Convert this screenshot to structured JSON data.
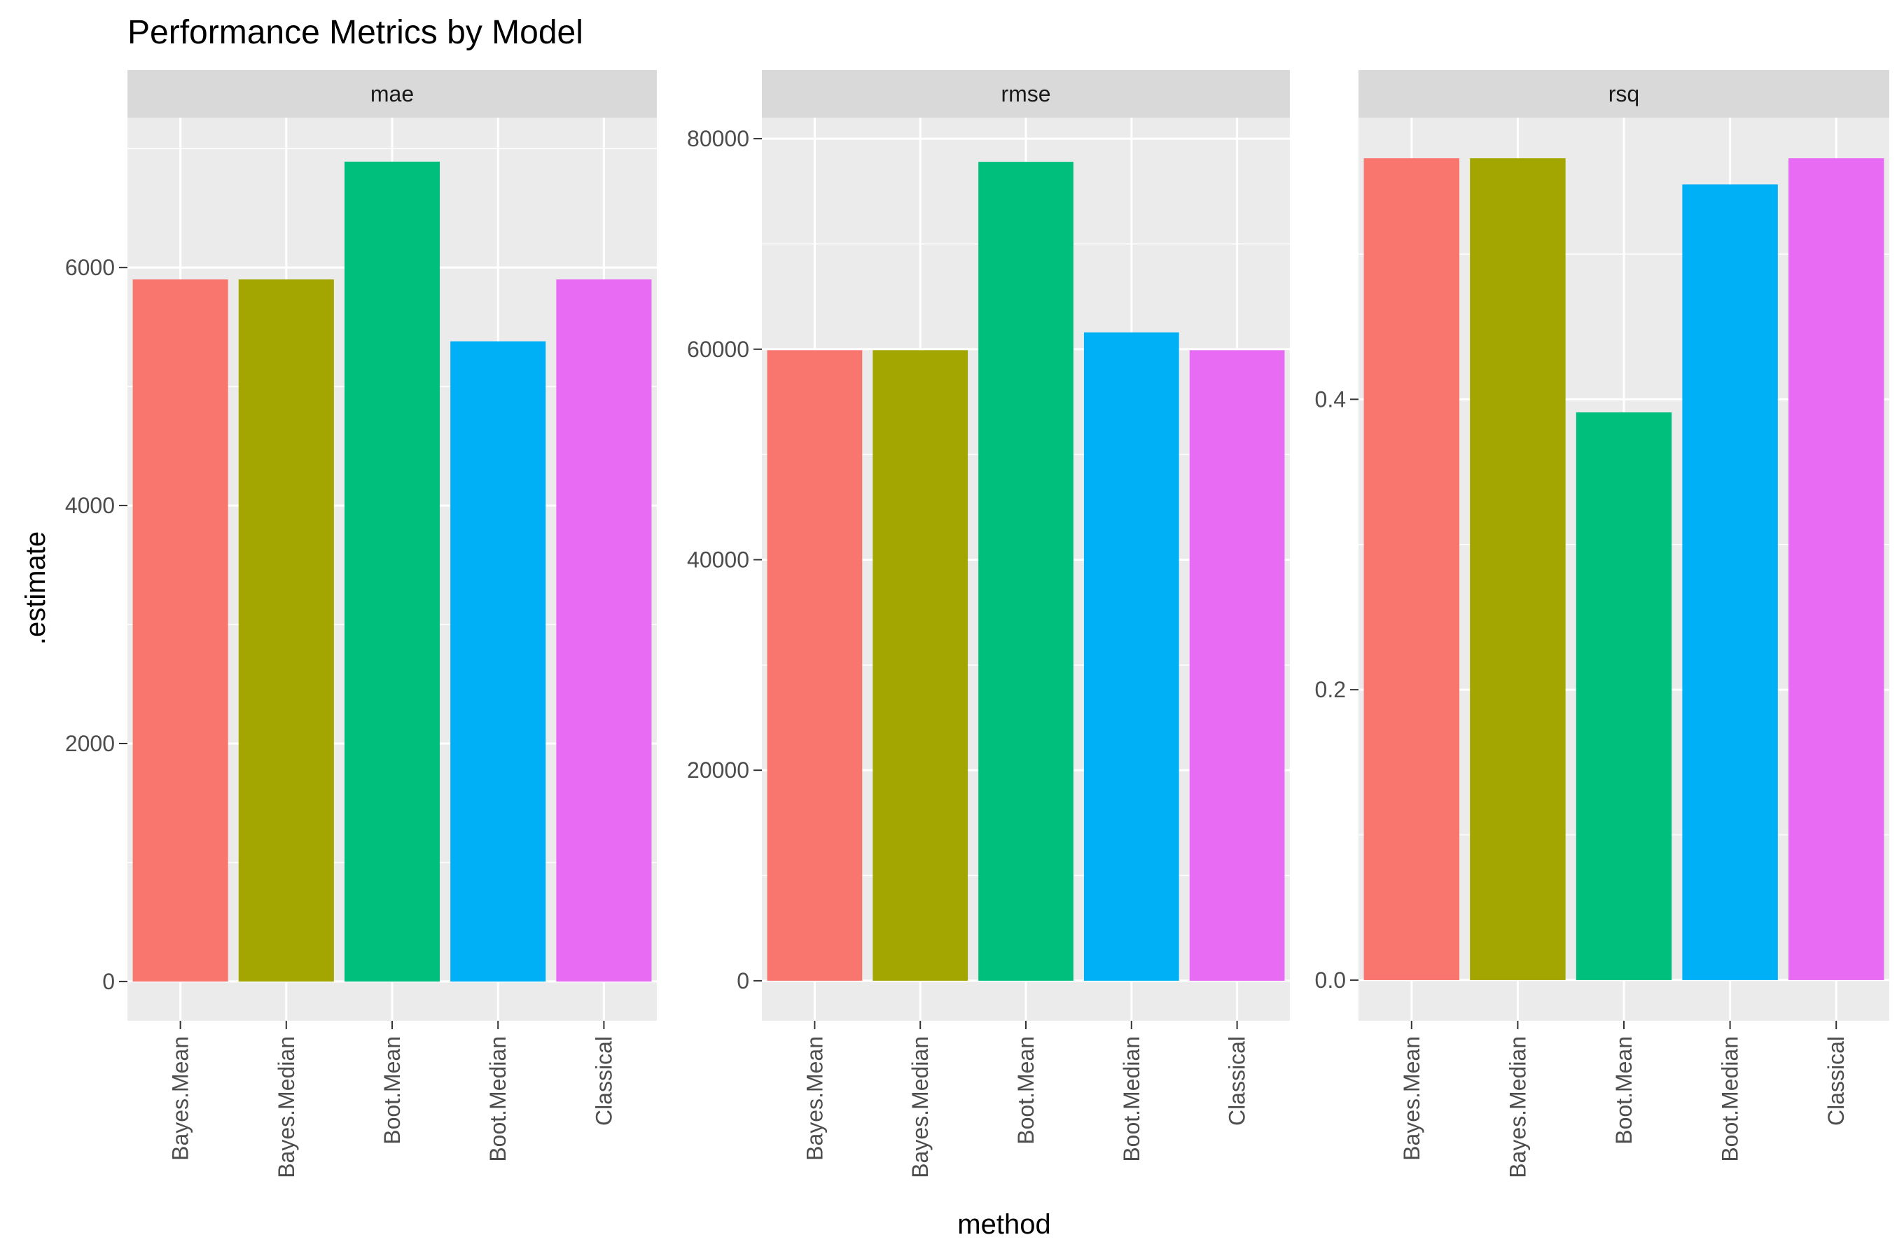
{
  "chart_data": {
    "type": "bar",
    "title": "Performance Metrics by Model",
    "xlabel": "method",
    "ylabel": ".estimate",
    "categories": [
      "Bayes.Mean",
      "Bayes.Median",
      "Boot.Mean",
      "Boot.Median",
      "Classical"
    ],
    "category_colors": [
      "#F8766D",
      "#A3A500",
      "#00BF7D",
      "#00B0F6",
      "#E76BF3"
    ],
    "grid": true,
    "legend": "none",
    "facets": [
      {
        "name": "mae",
        "values": [
          5900,
          5900,
          6890,
          5380,
          5900
        ],
        "ylim": [
          -330,
          7260
        ],
        "yticks": [
          0,
          2000,
          4000,
          6000
        ],
        "ytick_labels": [
          "0",
          "2000",
          "4000",
          "6000"
        ]
      },
      {
        "name": "rmse",
        "values": [
          59900,
          59900,
          77800,
          61600,
          59900
        ],
        "ylim": [
          -3800,
          82000
        ],
        "yticks": [
          0,
          20000,
          40000,
          60000,
          80000
        ],
        "ytick_labels": [
          "0",
          "20000",
          "40000",
          "60000",
          "80000"
        ]
      },
      {
        "name": "rsq",
        "values": [
          0.566,
          0.566,
          0.391,
          0.548,
          0.566
        ],
        "ylim": [
          -0.028,
          0.594
        ],
        "yticks": [
          0.0,
          0.2,
          0.4
        ],
        "ytick_labels": [
          "0.0",
          "0.2",
          "0.4"
        ]
      }
    ]
  }
}
